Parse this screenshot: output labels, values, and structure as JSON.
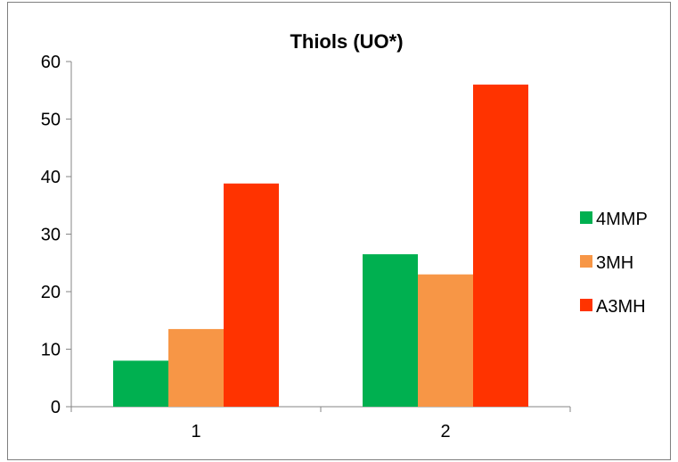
{
  "chart_data": {
    "type": "bar",
    "title": "Thiols (UO*)",
    "xlabel": "",
    "ylabel": "",
    "categories": [
      "1",
      "2"
    ],
    "series": [
      {
        "name": "4MMP",
        "values": [
          8,
          26.5
        ],
        "color": "#00b050"
      },
      {
        "name": "3MH",
        "values": [
          13.5,
          23
        ],
        "color": "#f79646"
      },
      {
        "name": "A3MH",
        "values": [
          38.8,
          56
        ],
        "color": "#ff3300"
      }
    ],
    "ylim": [
      0,
      60
    ],
    "yticks": [
      "0",
      "10",
      "20",
      "30",
      "40",
      "50",
      "60"
    ],
    "grid": false,
    "legend": "right"
  }
}
